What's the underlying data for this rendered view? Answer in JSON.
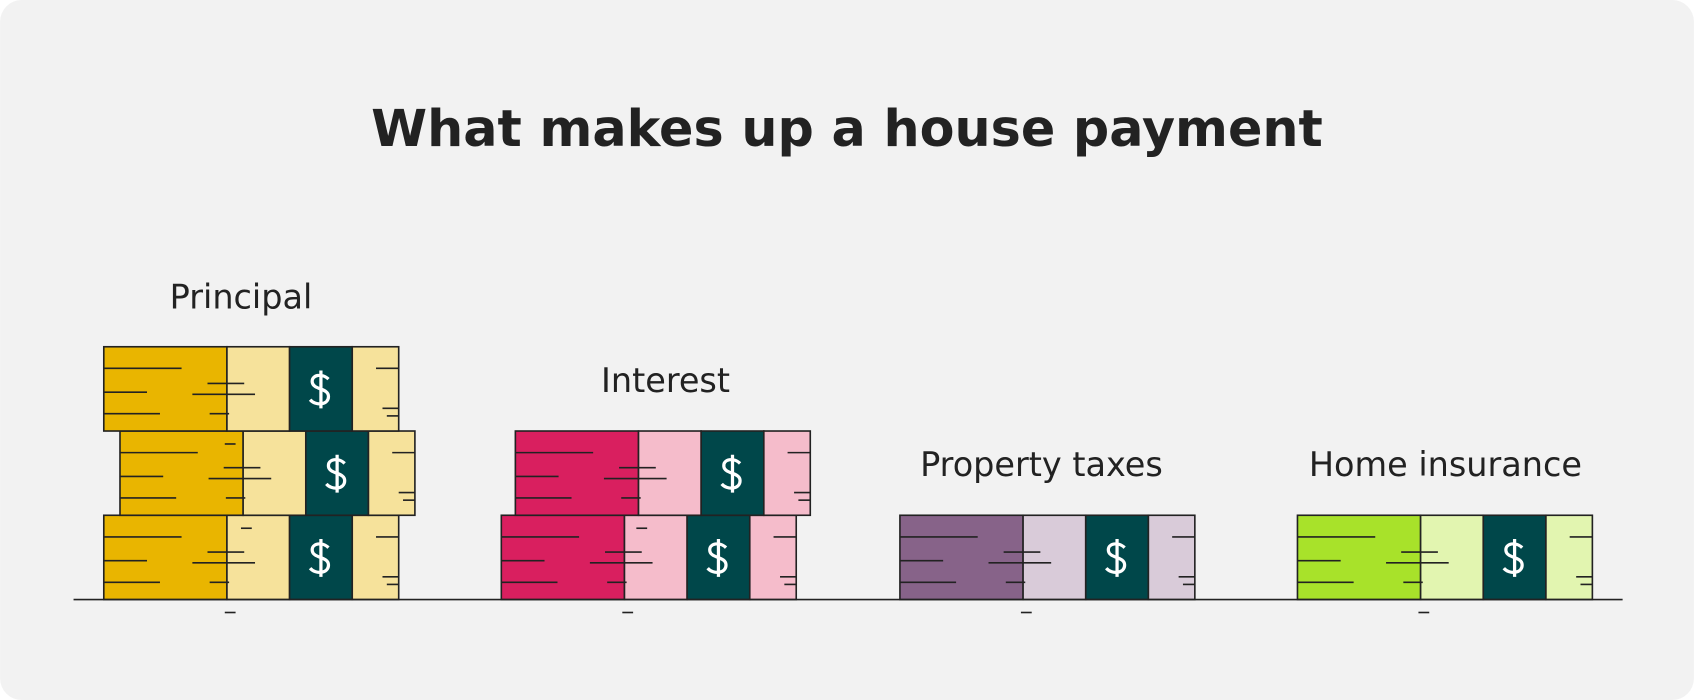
{
  "header": {
    "title": "What makes up a house payment"
  },
  "nodes": [
    {
      "label": "Principal"
    },
    {
      "label": "Interest"
    },
    {
      "label": "Property taxes"
    },
    {
      "label": "Home insurance"
    }
  ]
}
